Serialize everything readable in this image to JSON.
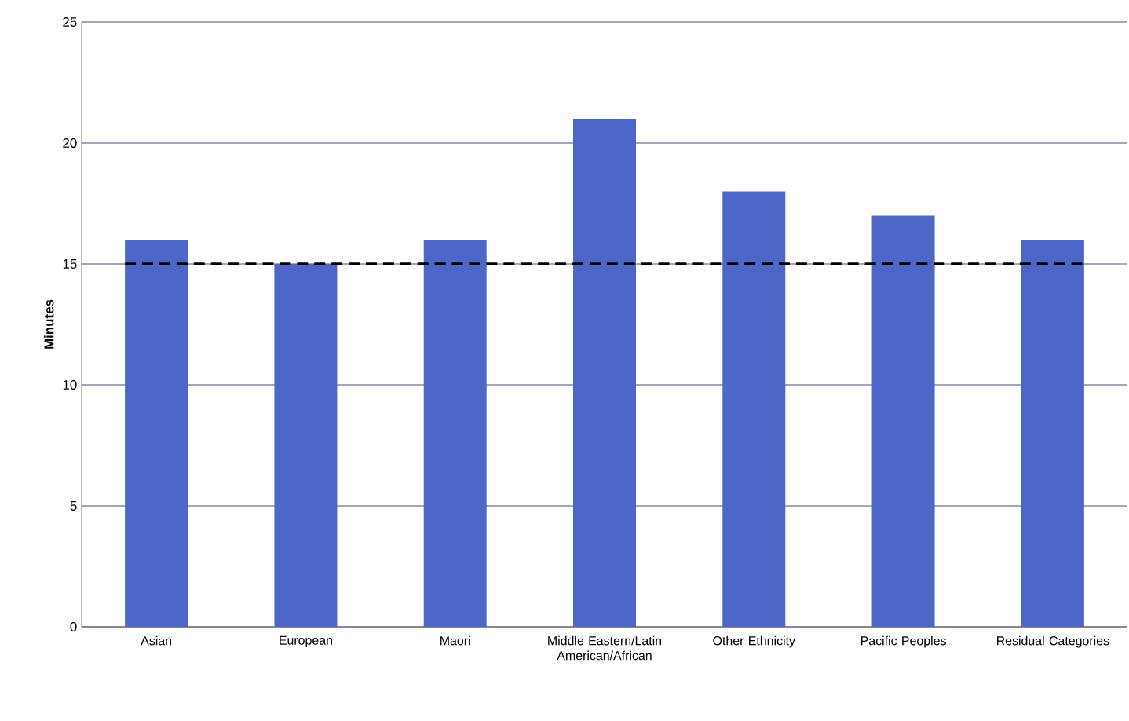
{
  "chart_data": {
    "type": "bar",
    "ylabel": "Minutes",
    "categories": [
      "Asian",
      "European",
      "Maori",
      "Middle Eastern/Latin American/African",
      "Other Ethnicity",
      "Pacific Peoples",
      "Residual Categories"
    ],
    "values": [
      16,
      15,
      16,
      21,
      18,
      17,
      16
    ],
    "color": "#4f66c9",
    "ylim": [
      0,
      25
    ],
    "yticks": [
      0,
      5,
      10,
      15,
      20,
      25
    ],
    "grid": "y",
    "ref_lines": [
      {
        "axis": "y",
        "value": 15,
        "color": "#000000",
        "line_style": "dashed"
      }
    ]
  }
}
